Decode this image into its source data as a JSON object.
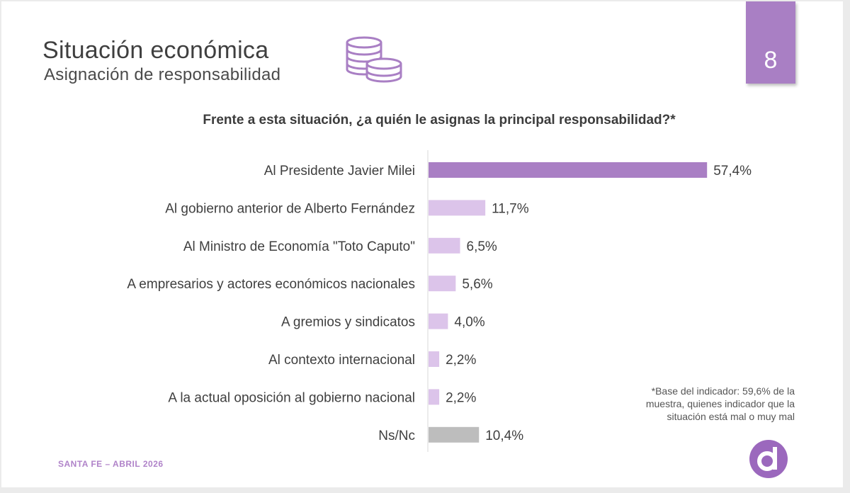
{
  "header": {
    "title": "Situación económica",
    "subtitle": "Asignación de responsabilidad",
    "page_number": "8",
    "coins_icon": "coins-icon"
  },
  "question": "Frente a esta situación, ¿a quién le asignas la principal responsabilidad?*",
  "footnote": {
    "line1": "*Base del indicador: 59,6% de la",
    "line2": "muestra, quienes indicador que la",
    "line3": "situación está mal o muy mal"
  },
  "footer": {
    "left": "SANTA FE – ABRIL 2026",
    "logo_icon": "d-logo-icon"
  },
  "colors": {
    "accent": "#a97fc4",
    "primary_bar": "#a97fc4",
    "secondary_bar": "#dcc4ea",
    "nsnc_bar": "#bdbdbd",
    "logo": "#9b68bd"
  },
  "chart_data": {
    "type": "bar",
    "orientation": "horizontal",
    "categories": [
      "Al Presidente Javier Milei",
      "Al gobierno anterior de Alberto Fernández",
      "Al Ministro de Economía \"Toto Caputo\"",
      "A empresarios y actores económicos nacionales",
      "A gremios y sindicatos",
      "Al contexto internacional",
      "A la actual oposición al gobierno nacional",
      "Ns/Nc"
    ],
    "values": [
      57.4,
      11.7,
      6.5,
      5.6,
      4.0,
      2.2,
      2.2,
      10.4
    ],
    "value_labels": [
      "57,4%",
      "11,7%",
      "6,5%",
      "5,6%",
      "4,0%",
      "2,2%",
      "2,2%",
      "10,4%"
    ],
    "bar_colors": [
      "#a97fc4",
      "#dcc4ea",
      "#dcc4ea",
      "#dcc4ea",
      "#dcc4ea",
      "#dcc4ea",
      "#dcc4ea",
      "#bdbdbd"
    ],
    "unit": "%",
    "xlim": [
      0,
      100
    ],
    "grid": false,
    "legend": "none"
  }
}
